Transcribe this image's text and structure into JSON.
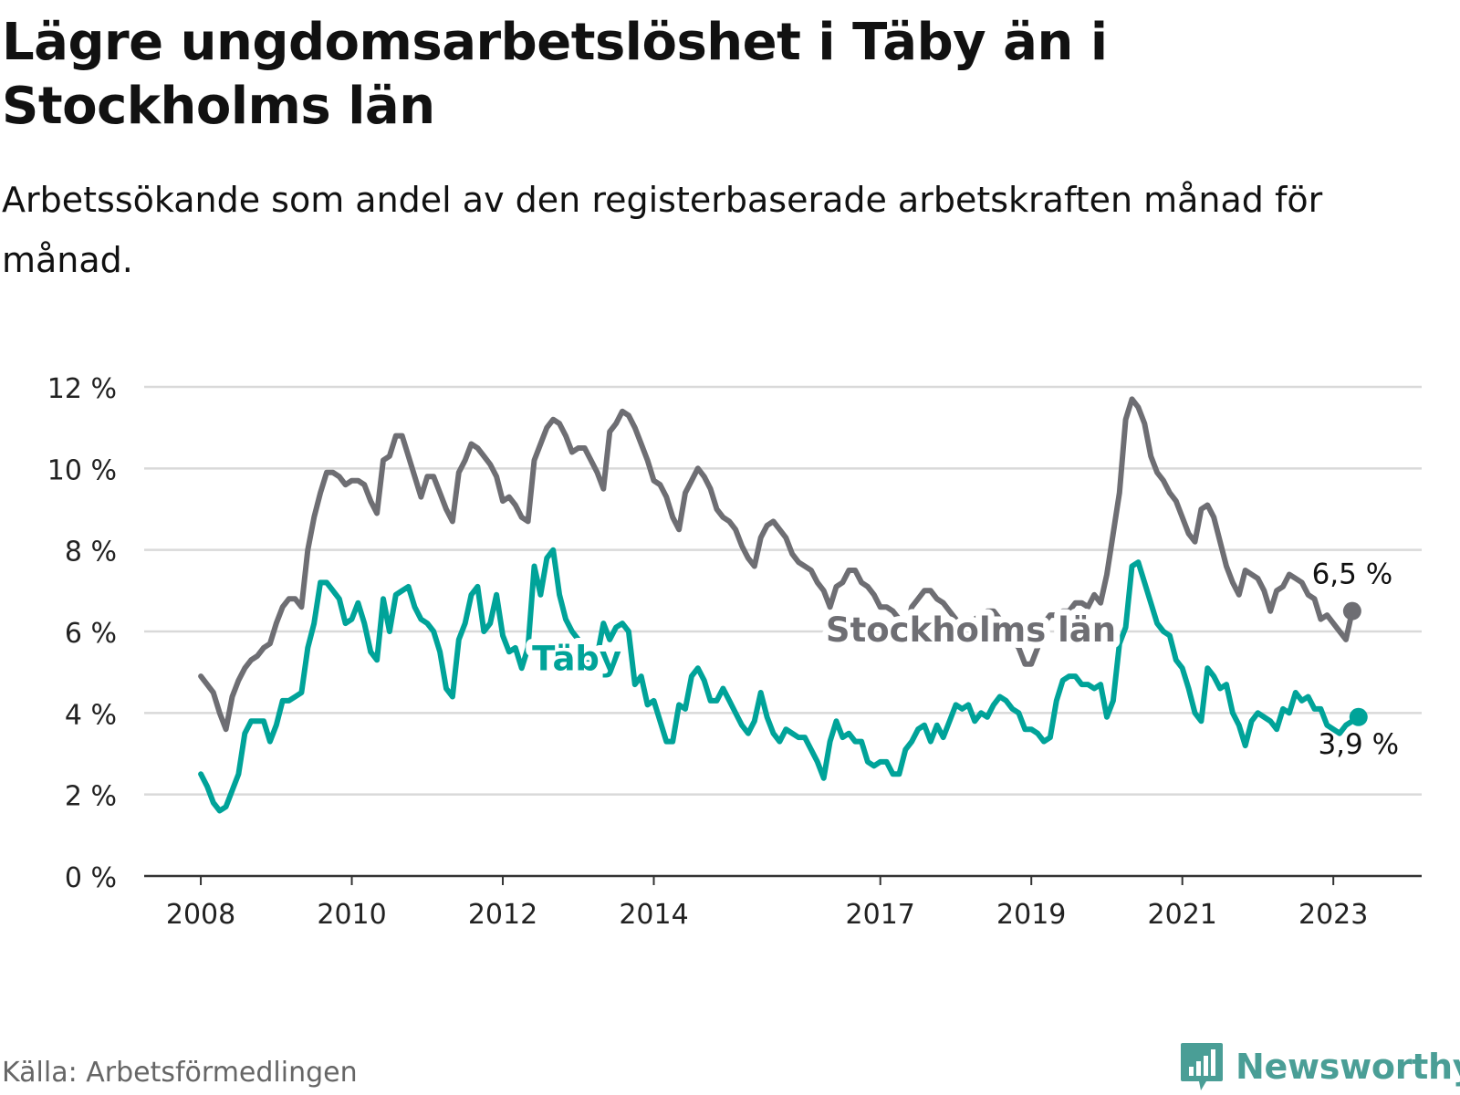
{
  "title": "Lägre ungdomsarbetslöshet i Täby än i Stockholms län",
  "subtitle": "Arbetssökande som andel av den registerbaserade arbetskraften månad för månad.",
  "source": "Källa: Arbetsförmedlingen",
  "brand": {
    "name": "Newsworthy",
    "icon": "bar-chart-bubble-icon",
    "color": "#4a9e96"
  },
  "colors": {
    "stockholm": "#6e6e73",
    "taby": "#00a399",
    "grid": "#d9d9d9",
    "axis": "#333333",
    "text": "#222222"
  },
  "chart_data": {
    "type": "line",
    "title": "Lägre ungdomsarbetslöshet i Täby än i Stockholms län",
    "xlabel": "",
    "ylabel": "",
    "x_start": 2008.0,
    "x_step": 0.0833333,
    "xlim": [
      2007.25,
      2024.17
    ],
    "ylim": [
      0,
      12
    ],
    "x_ticks": [
      2008,
      2010,
      2012,
      2014,
      2017,
      2019,
      2021,
      2023
    ],
    "x_tick_labels": [
      "2008",
      "2010",
      "2012",
      "2014",
      "2017",
      "2019",
      "2021",
      "2023"
    ],
    "y_ticks": [
      0,
      2,
      4,
      6,
      8,
      10,
      12
    ],
    "y_tick_labels": [
      "0 %",
      "2 %",
      "4 %",
      "6 %",
      "8 %",
      "10 %",
      "12 %"
    ],
    "grid": true,
    "series": [
      {
        "name": "Stockholms län",
        "label": "Stockholms län",
        "end_label": "6,5 %",
        "values": [
          4.9,
          4.7,
          4.5,
          4.0,
          3.6,
          4.4,
          4.8,
          5.1,
          5.3,
          5.4,
          5.6,
          5.7,
          6.2,
          6.6,
          6.8,
          6.8,
          6.6,
          8.0,
          8.8,
          9.4,
          9.9,
          9.9,
          9.8,
          9.6,
          9.7,
          9.7,
          9.6,
          9.2,
          8.9,
          10.2,
          10.3,
          10.8,
          10.8,
          10.3,
          9.8,
          9.3,
          9.8,
          9.8,
          9.4,
          9.0,
          8.7,
          9.9,
          10.2,
          10.6,
          10.5,
          10.3,
          10.1,
          9.8,
          9.2,
          9.3,
          9.1,
          8.8,
          8.7,
          10.2,
          10.6,
          11.0,
          11.2,
          11.1,
          10.8,
          10.4,
          10.5,
          10.5,
          10.2,
          9.9,
          9.5,
          10.9,
          11.1,
          11.4,
          11.3,
          11.0,
          10.6,
          10.2,
          9.7,
          9.6,
          9.3,
          8.8,
          8.5,
          9.4,
          9.7,
          10.0,
          9.8,
          9.5,
          9.0,
          8.8,
          8.7,
          8.5,
          8.1,
          7.8,
          7.6,
          8.3,
          8.6,
          8.7,
          8.5,
          8.3,
          7.9,
          7.7,
          7.6,
          7.5,
          7.2,
          7.0,
          6.6,
          7.1,
          7.2,
          7.5,
          7.5,
          7.2,
          7.1,
          6.9,
          6.6,
          6.6,
          6.5,
          6.3,
          6.0,
          6.6,
          6.8,
          7.0,
          7.0,
          6.8,
          6.7,
          6.5,
          6.3,
          6.1,
          6.1,
          6.3,
          6.4,
          6.5,
          6.5,
          6.3,
          6.0,
          5.8,
          5.6,
          5.2,
          5.2,
          5.6,
          6.2,
          6.4,
          6.4,
          6.5,
          6.5,
          6.7,
          6.7,
          6.6,
          6.9,
          6.7,
          7.4,
          8.4,
          9.4,
          11.2,
          11.7,
          11.5,
          11.1,
          10.3,
          9.9,
          9.7,
          9.4,
          9.2,
          8.8,
          8.4,
          8.2,
          9.0,
          9.1,
          8.8,
          8.2,
          7.6,
          7.2,
          6.9,
          7.5,
          7.4,
          7.3,
          7.0,
          6.5,
          7.0,
          7.1,
          7.4,
          7.3,
          7.2,
          6.9,
          6.8,
          6.3,
          6.4,
          6.2,
          6.0,
          5.8,
          6.5
        ],
        "color": "#6e6e73"
      },
      {
        "name": "Täby",
        "label": "Täby",
        "end_label": "3,9 %",
        "values": [
          2.5,
          2.2,
          1.8,
          1.6,
          1.7,
          2.1,
          2.5,
          3.5,
          3.8,
          3.8,
          3.8,
          3.3,
          3.7,
          4.3,
          4.3,
          4.4,
          4.5,
          5.6,
          6.2,
          7.2,
          7.2,
          7.0,
          6.8,
          6.2,
          6.3,
          6.7,
          6.2,
          5.5,
          5.3,
          6.8,
          6.0,
          6.9,
          7.0,
          7.1,
          6.6,
          6.3,
          6.2,
          6.0,
          5.5,
          4.6,
          4.4,
          5.8,
          6.2,
          6.9,
          7.1,
          6.0,
          6.2,
          6.9,
          5.9,
          5.5,
          5.6,
          5.1,
          5.6,
          7.6,
          6.9,
          7.8,
          8.0,
          6.9,
          6.3,
          6.0,
          5.8,
          5.5,
          5.2,
          5.4,
          6.2,
          5.8,
          6.1,
          6.2,
          6.0,
          4.7,
          4.9,
          4.2,
          4.3,
          3.8,
          3.3,
          3.3,
          4.2,
          4.1,
          4.9,
          5.1,
          4.8,
          4.3,
          4.3,
          4.6,
          4.3,
          4.0,
          3.7,
          3.5,
          3.8,
          4.5,
          3.9,
          3.5,
          3.3,
          3.6,
          3.5,
          3.4,
          3.4,
          3.1,
          2.8,
          2.4,
          3.3,
          3.8,
          3.4,
          3.5,
          3.3,
          3.3,
          2.8,
          2.7,
          2.8,
          2.8,
          2.5,
          2.5,
          3.1,
          3.3,
          3.6,
          3.7,
          3.3,
          3.7,
          3.4,
          3.8,
          4.2,
          4.1,
          4.2,
          3.8,
          4.0,
          3.9,
          4.2,
          4.4,
          4.3,
          4.1,
          4.0,
          3.6,
          3.6,
          3.5,
          3.3,
          3.4,
          4.3,
          4.8,
          4.9,
          4.9,
          4.7,
          4.7,
          4.6,
          4.7,
          3.9,
          4.3,
          5.7,
          6.1,
          7.6,
          7.7,
          7.2,
          6.7,
          6.2,
          6.0,
          5.9,
          5.3,
          5.1,
          4.6,
          4.0,
          3.8,
          5.1,
          4.9,
          4.6,
          4.7,
          4.0,
          3.7,
          3.2,
          3.8,
          4.0,
          3.9,
          3.8,
          3.6,
          4.1,
          4.0,
          4.5,
          4.3,
          4.4,
          4.1,
          4.1,
          3.7,
          3.6,
          3.5,
          3.7,
          3.8,
          3.9
        ],
        "color": "#00a399"
      }
    ]
  }
}
